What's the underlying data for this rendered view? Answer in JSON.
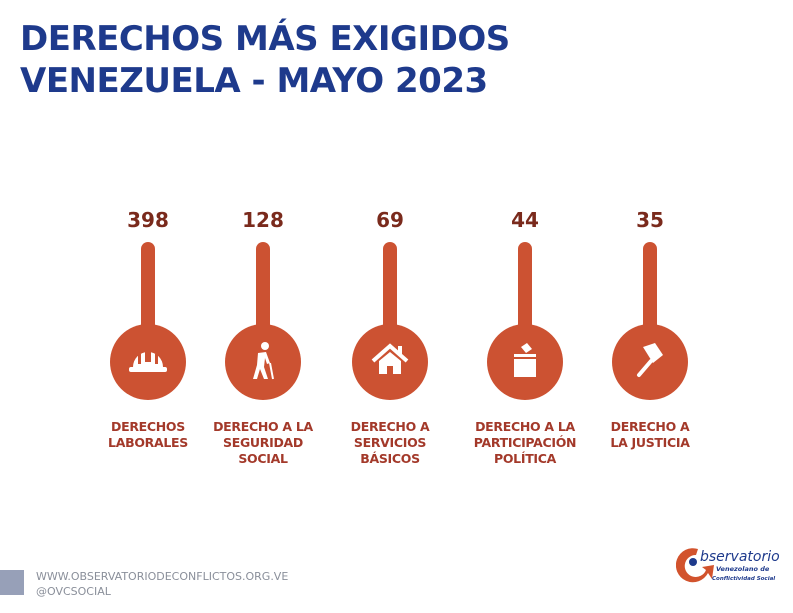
{
  "title": {
    "line1": "DERECHOS MÁS EXIGIDOS",
    "line2": "VENEZUELA - MAYO 2023"
  },
  "chart_data": {
    "type": "bar",
    "categories": [
      "DERECHOS LABORALES",
      "DERECHO A LA SEGURIDAD SOCIAL",
      "DERECHO A SERVICIOS BÁSICOS",
      "DERECHO A LA PARTICIPACIÓN POLÍTICA",
      "DERECHO A LA JUSTICIA"
    ],
    "values": [
      398,
      128,
      69,
      44,
      35
    ],
    "labels_display": [
      "DERECHOS\nLABORALES",
      "DERECHO A LA\nSEGURIDAD\nSOCIAL",
      "DERECHO A\nSERVICIOS\nBÁSICOS",
      "DERECHO A LA\nPARTICIPACIÓN\nPOLÍTICA",
      "DERECHO A\nLA JUSTICIA"
    ],
    "value_labels": [
      "398",
      "128",
      "69",
      "44",
      "35"
    ],
    "icons": [
      "hard-hat-icon",
      "elderly-person-cane-icon",
      "house-icon",
      "ballot-box-icon",
      "gavel-icon"
    ],
    "color": "#cc5232"
  },
  "footer": {
    "website": "WWW.OBSERVATORIODECONFLICTOS.ORG.VE",
    "handle": "@OVCSOCIAL"
  },
  "logo": {
    "text": "bservatorio",
    "line2": "Venezolano de",
    "line3": "Conflictividad Social"
  }
}
